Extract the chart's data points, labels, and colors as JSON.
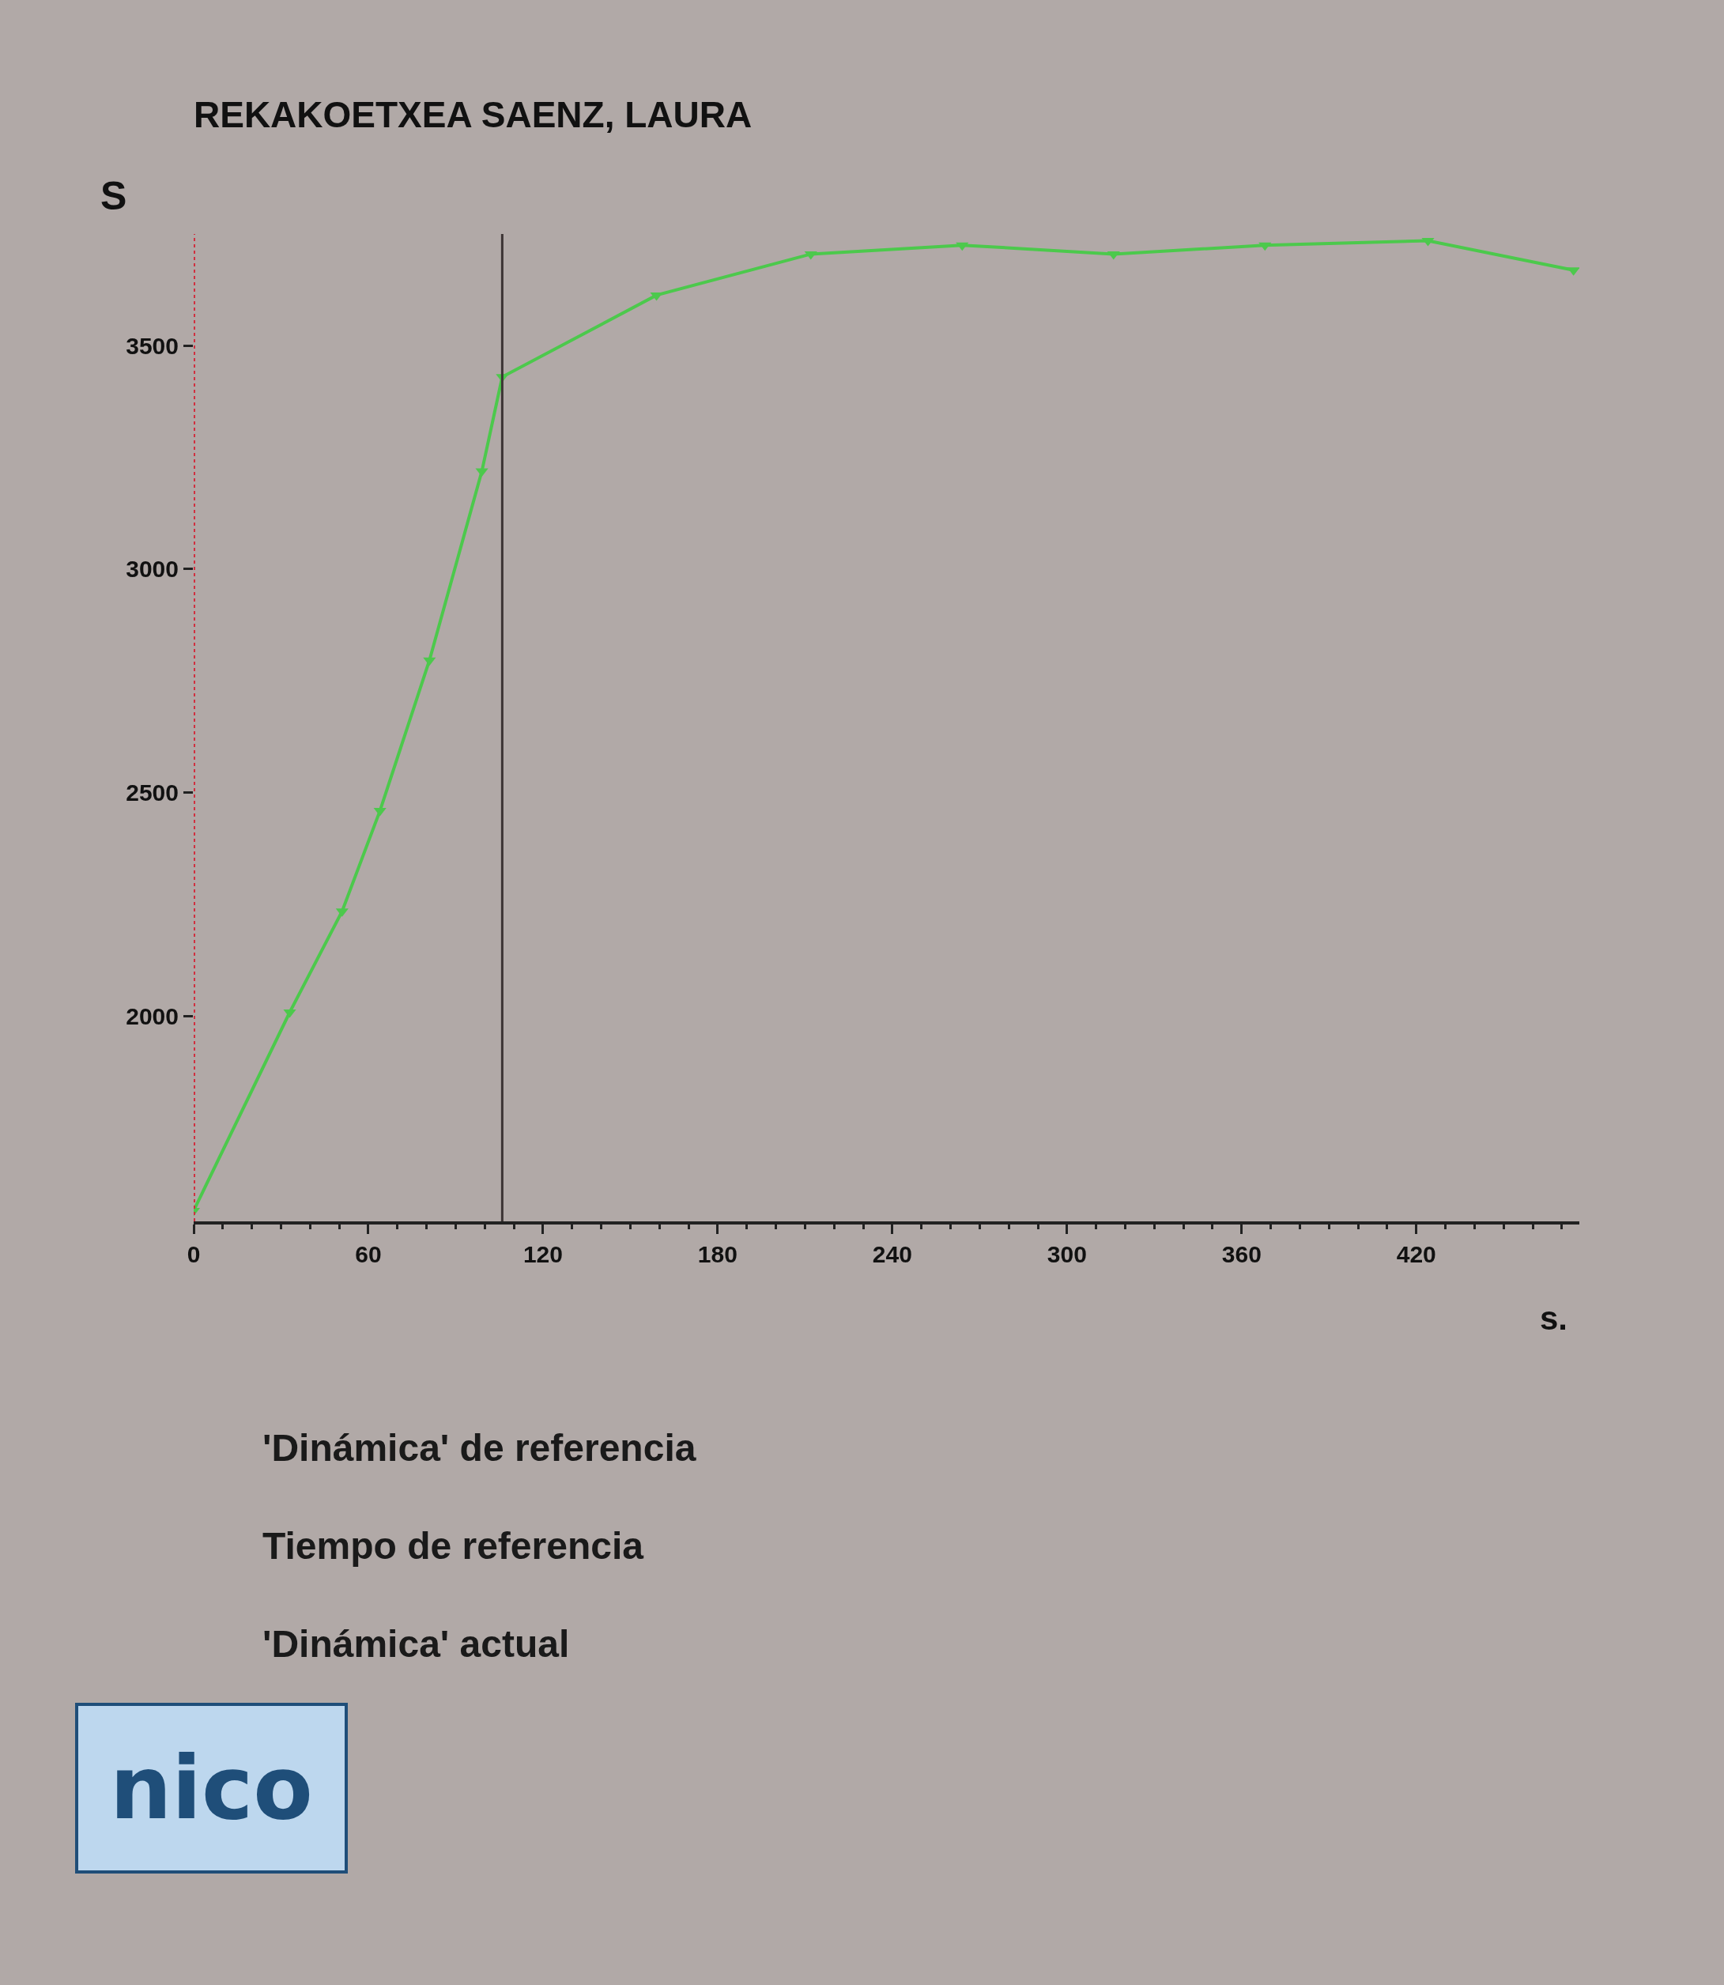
{
  "chart_data": {
    "type": "line",
    "title": "REKAKOETXEA SAENZ, LAURA",
    "ylabel": "S",
    "xlabel": "s.",
    "series": [
      {
        "color": "#4cc94c",
        "x": [
          0,
          33,
          51,
          64,
          81,
          99,
          106,
          159,
          212,
          264,
          316,
          368,
          424,
          474
        ],
        "values": [
          1564,
          2008,
          2234,
          2459,
          2796,
          3219,
          3430,
          3613,
          3705,
          3725,
          3705,
          3725,
          3735,
          3669
        ]
      }
    ],
    "xlim": [
      0,
      476
    ],
    "xticks": [
      0,
      60,
      120,
      180,
      240,
      300,
      360,
      420
    ],
    "ylim": [
      1540,
      3750
    ],
    "yticks": [
      2000,
      2500,
      3000,
      3500
    ],
    "ref_lines": [
      {
        "axis": "x",
        "value": 106,
        "color": "#3c3434",
        "line_style": "solid"
      },
      {
        "axis": "x",
        "value": 0,
        "color": "#d03040",
        "line_style": "dotted"
      }
    ],
    "annotations": [
      "'Dinámica' de referencia",
      "Tiempo de referencia",
      "'Dinámica' actual",
      "nico"
    ],
    "marker": "triangle",
    "grid": false
  }
}
